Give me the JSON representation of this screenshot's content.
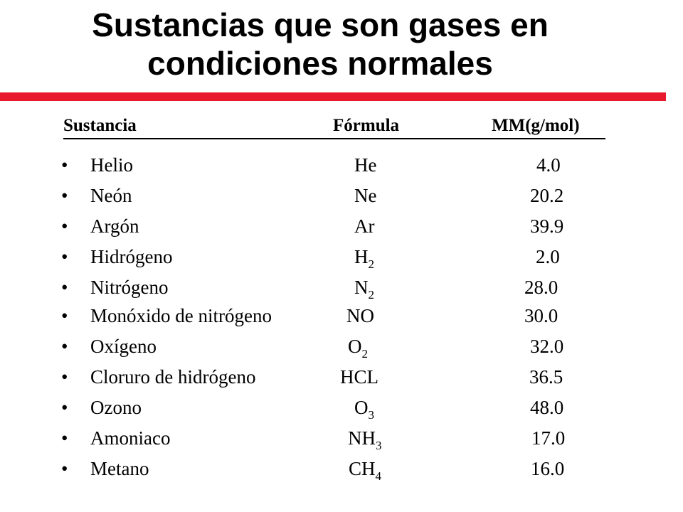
{
  "title": {
    "line1": "Sustancias que son gases en",
    "line2": "condiciones normales"
  },
  "accent_color": "#e8192c",
  "table": {
    "headers": {
      "name": "Sustancia",
      "formula": "Fórmula",
      "mm": "MM(g/mol)"
    },
    "bullet": "•",
    "rows": [
      {
        "name": "Helio",
        "formula": "He",
        "formula_sub": "",
        "mm": "4.0"
      },
      {
        "name": "Neón",
        "formula": "Ne",
        "formula_sub": "",
        "mm": "20.2"
      },
      {
        "name": "Argón",
        "formula": "Ar",
        "formula_sub": "",
        "mm": "39.9"
      },
      {
        "name": "Hidrógeno",
        "formula": "H",
        "formula_sub": "2",
        "mm": "2.0"
      },
      {
        "name": "Nitrógeno",
        "formula": "N",
        "formula_sub": "2",
        "mm": "28.0"
      },
      {
        "name": "Monóxido de nitrógeno",
        "formula": "NO",
        "formula_sub": "",
        "mm": "30.0"
      },
      {
        "name": "Oxígeno",
        "formula": "O",
        "formula_sub": "2",
        "mm": "32.0"
      },
      {
        "name": "Cloruro de hidrógeno",
        "formula": "HCL",
        "formula_sub": "",
        "mm": "36.5"
      },
      {
        "name": "Ozono",
        "formula": "O",
        "formula_sub": "3",
        "mm": "48.0"
      },
      {
        "name": "Amoniaco",
        "formula": "NH",
        "formula_sub": "3",
        "mm": "17.0"
      },
      {
        "name": "Metano",
        "formula": "CH",
        "formula_sub": "4",
        "mm": "16.0"
      }
    ]
  }
}
